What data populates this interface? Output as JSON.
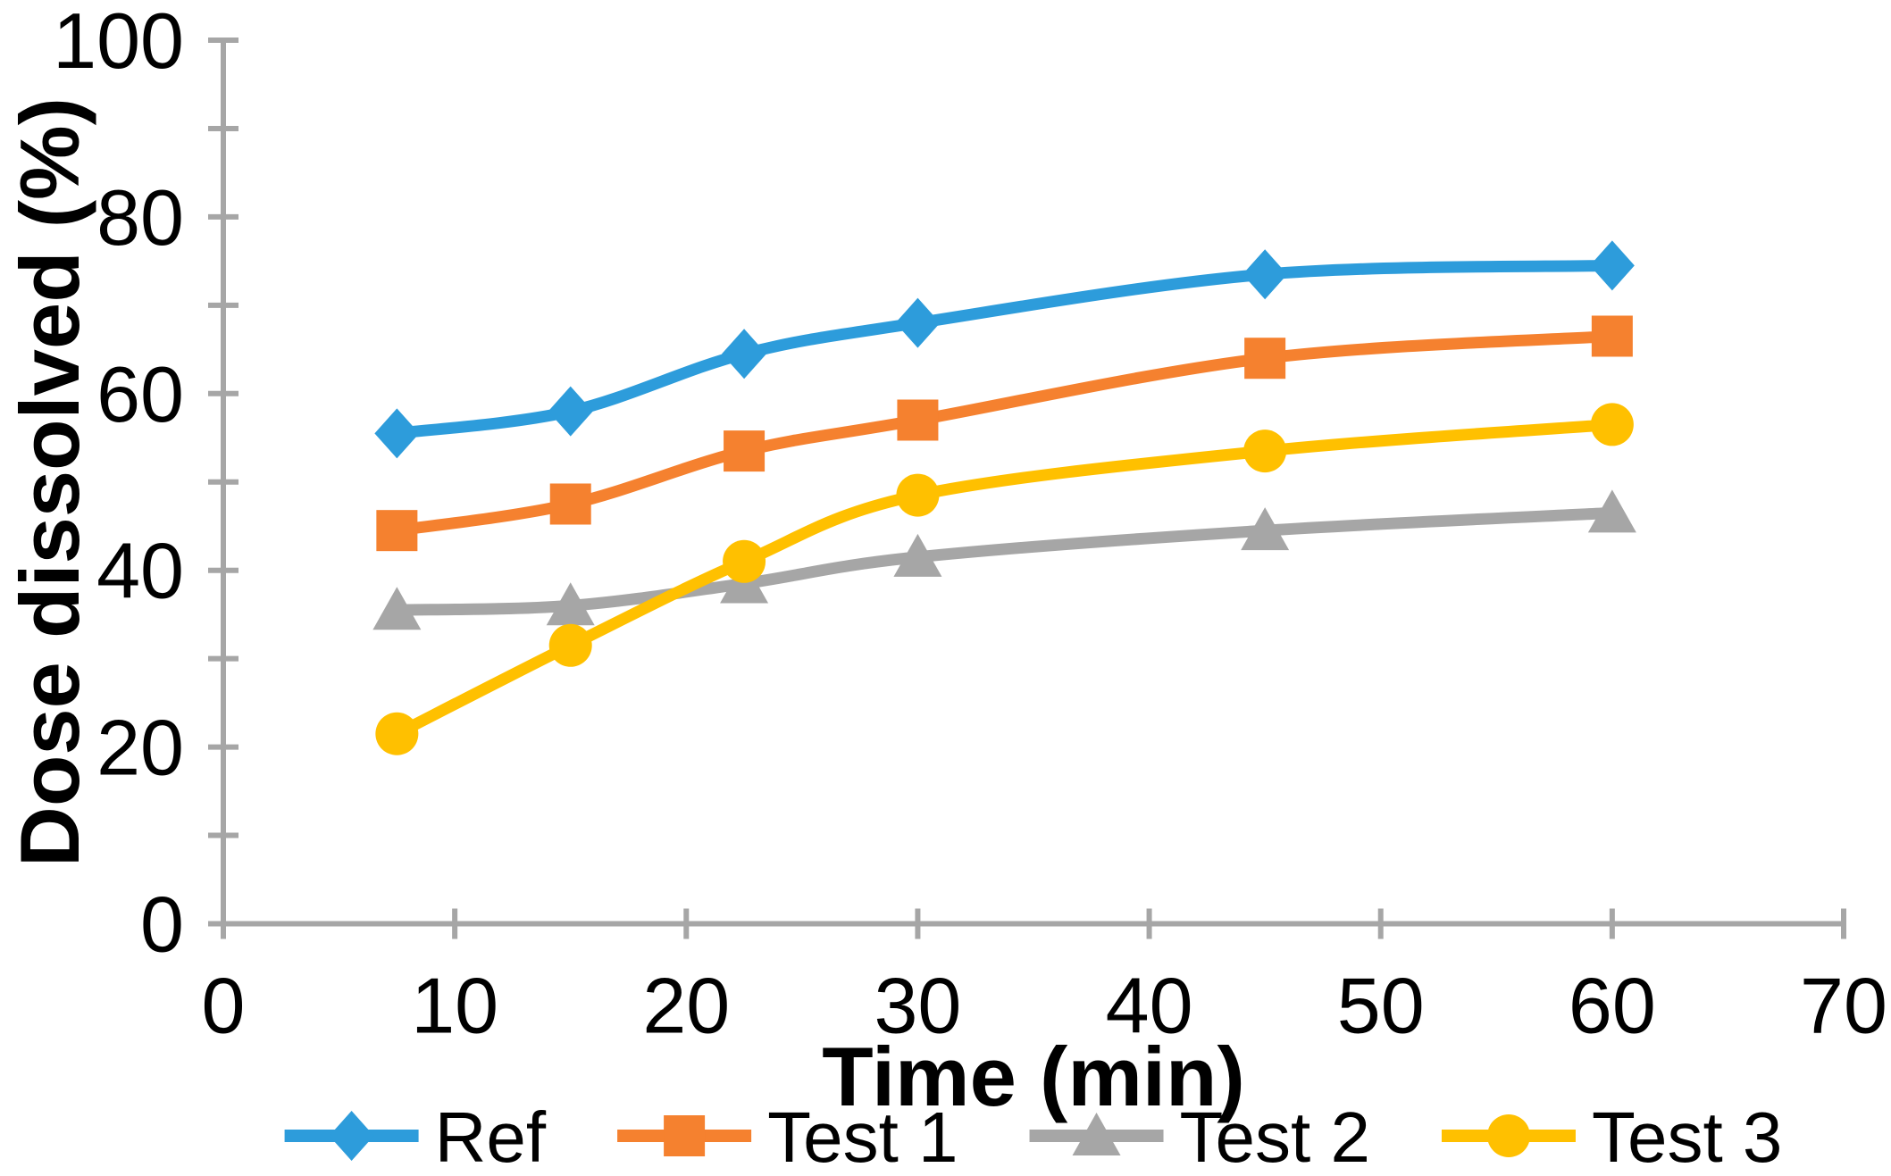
{
  "chart_data": {
    "type": "line",
    "title": "",
    "xlabel": "Time (min)",
    "ylabel": "Dose dissolved (%)",
    "x": [
      7.5,
      15,
      22.5,
      30,
      45,
      60
    ],
    "series": [
      {
        "name": "Ref",
        "marker": "diamond",
        "color": "#2D9CDB",
        "values": [
          55.5,
          58.0,
          64.5,
          68.0,
          73.5,
          74.5
        ]
      },
      {
        "name": "Test 1",
        "marker": "square",
        "color": "#F5812F",
        "values": [
          44.5,
          47.5,
          53.5,
          57.0,
          64.0,
          66.5
        ]
      },
      {
        "name": "Test 2",
        "marker": "triangle",
        "color": "#A6A6A6",
        "values": [
          35.5,
          36.0,
          38.5,
          41.5,
          44.5,
          46.5
        ]
      },
      {
        "name": "Test 3",
        "marker": "circle",
        "color": "#FFC000",
        "values": [
          21.5,
          31.5,
          41.0,
          48.5,
          53.5,
          56.5
        ]
      }
    ],
    "xlim": [
      0,
      70
    ],
    "ylim": [
      0,
      100
    ],
    "x_ticks": [
      0,
      10,
      20,
      30,
      40,
      50,
      60,
      70
    ],
    "y_major_ticks": [
      0,
      20,
      40,
      60,
      80,
      100
    ],
    "y_minor_step": 10,
    "grid": false,
    "smoothed_lines": true,
    "legend_position": "bottom",
    "axis_color": "#A6A6A6",
    "text_color": "#000000",
    "background_color": "#FFFFFF"
  }
}
